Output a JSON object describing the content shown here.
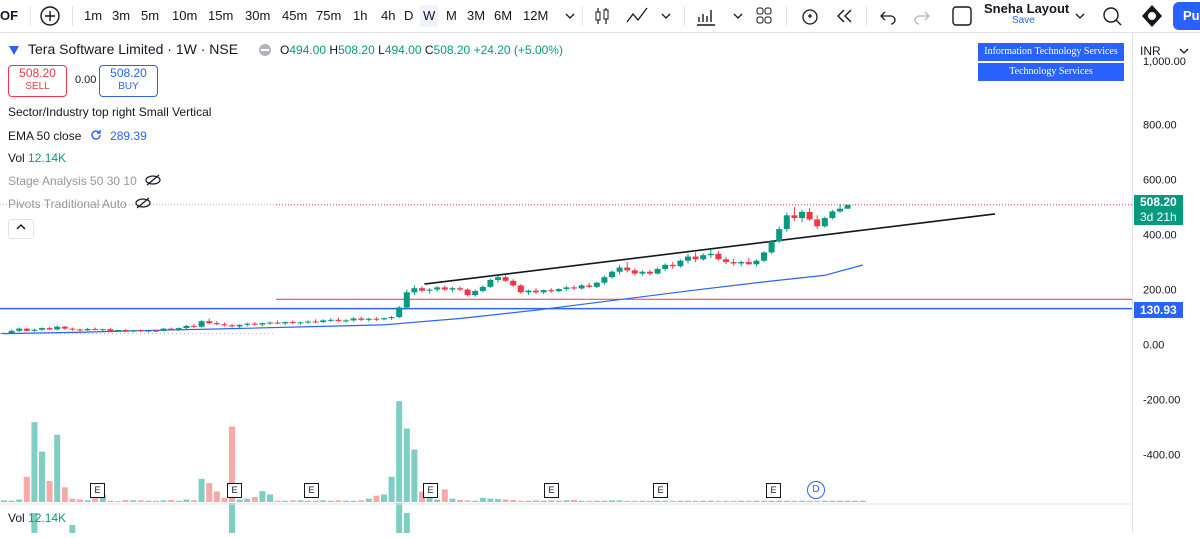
{
  "toolbar": {
    "left_cut": "OF",
    "intervals": [
      "1m",
      "3m",
      "5m",
      "10m",
      "15m",
      "30m",
      "45m",
      "75m",
      "1h",
      "4h",
      "D",
      "W",
      "M",
      "3M",
      "6M",
      "12M"
    ],
    "active_interval": "W",
    "layout_name": "Sneha Layout",
    "layout_save": "Save",
    "publish_cut": "Pu"
  },
  "legend": {
    "title": "Tera Software Limited · 1W · NSE",
    "o_key": "O",
    "o": "494.00",
    "h_key": "H",
    "h": "508.20",
    "l_key": "L",
    "l": "494.00",
    "c_key": "C",
    "c": "508.20",
    "change": "+24.20 (+5.00%)",
    "sell_price": "508.20",
    "sell_label": "SELL",
    "spread": "0.00",
    "buy_price": "508.20",
    "buy_label": "BUY"
  },
  "indicators": {
    "sector": "Sector/Industry top right Small Vertical",
    "ema_label": "EMA 50 close",
    "ema_value": "289.39",
    "vol_label": "Vol",
    "vol_value": "12.14K",
    "stage": "Stage Analysis 50 30 10",
    "pivots": "Pivots Traditional Auto",
    "vol2_label": "Vol",
    "vol2_value": "12.14K"
  },
  "sector_boxes": [
    "Information Technology Services",
    "Technology Services"
  ],
  "currency": "INR",
  "badges": {
    "last_price": "508.20",
    "countdown": "3d 21h",
    "line_price": "130.93",
    "last_color": "#089981",
    "line_color": "#2962ff"
  },
  "earnings_mark": "E",
  "dividend_mark": "D",
  "colors": {
    "up": "#089981",
    "down": "#f23645",
    "ema": "#2962ff",
    "accent": "#2962ff"
  },
  "chart_data": {
    "type": "candlestick",
    "symbol": "Tera Software Limited",
    "interval": "1W",
    "y_ticks": [
      800,
      600,
      400,
      200,
      0,
      -200,
      -400
    ],
    "y_tick_labels": [
      "800.00",
      "600.00",
      "400.00",
      "200.00",
      "0.00",
      "-200.00",
      "-400.00"
    ],
    "ylim": [
      -560,
      1000
    ],
    "horizontal_lines": [
      {
        "price": 508.2,
        "color": "#f23645",
        "style": "dotted"
      },
      {
        "price": 165,
        "color": "#f23645",
        "style": "solid"
      },
      {
        "price": 130.93,
        "color": "#2962ff",
        "style": "solid"
      }
    ],
    "trendline": {
      "from_bar": 54,
      "from_price": 220,
      "to_bar": 125,
      "to_price": 475
    },
    "candles": [
      [
        40,
        44,
        38,
        42
      ],
      [
        42,
        55,
        40,
        50
      ],
      [
        50,
        62,
        46,
        58
      ],
      [
        58,
        60,
        48,
        50
      ],
      [
        50,
        58,
        46,
        54
      ],
      [
        54,
        62,
        50,
        60
      ],
      [
        60,
        64,
        52,
        55
      ],
      [
        55,
        70,
        52,
        65
      ],
      [
        65,
        68,
        54,
        58
      ],
      [
        58,
        62,
        50,
        55
      ],
      [
        55,
        58,
        48,
        52
      ],
      [
        52,
        60,
        50,
        57
      ],
      [
        57,
        62,
        52,
        54
      ],
      [
        54,
        58,
        50,
        56
      ],
      [
        56,
        60,
        48,
        50
      ],
      [
        50,
        55,
        46,
        53
      ],
      [
        53,
        56,
        46,
        48
      ],
      [
        48,
        54,
        44,
        52
      ],
      [
        52,
        56,
        46,
        49
      ],
      [
        49,
        54,
        44,
        51
      ],
      [
        51,
        55,
        46,
        50
      ],
      [
        50,
        60,
        48,
        58
      ],
      [
        58,
        62,
        52,
        55
      ],
      [
        55,
        62,
        50,
        60
      ],
      [
        60,
        72,
        56,
        68
      ],
      [
        68,
        75,
        60,
        65
      ],
      [
        65,
        90,
        62,
        85
      ],
      [
        85,
        95,
        74,
        78
      ],
      [
        78,
        85,
        70,
        74
      ],
      [
        74,
        80,
        66,
        70
      ],
      [
        70,
        76,
        62,
        66
      ],
      [
        66,
        74,
        60,
        72
      ],
      [
        72,
        80,
        66,
        76
      ],
      [
        76,
        82,
        70,
        73
      ],
      [
        73,
        80,
        66,
        78
      ],
      [
        78,
        84,
        72,
        80
      ],
      [
        80,
        88,
        74,
        77
      ],
      [
        77,
        84,
        70,
        82
      ],
      [
        82,
        88,
        74,
        79
      ],
      [
        79,
        84,
        72,
        81
      ],
      [
        81,
        88,
        76,
        84
      ],
      [
        84,
        92,
        78,
        82
      ],
      [
        82,
        92,
        78,
        88
      ],
      [
        88,
        96,
        82,
        90
      ],
      [
        90,
        98,
        82,
        86
      ],
      [
        86,
        92,
        80,
        88
      ],
      [
        88,
        100,
        84,
        95
      ],
      [
        95,
        102,
        86,
        90
      ],
      [
        90,
        98,
        84,
        94
      ],
      [
        94,
        100,
        86,
        92
      ],
      [
        92,
        98,
        88,
        96
      ],
      [
        96,
        104,
        90,
        100
      ],
      [
        100,
        140,
        96,
        135
      ],
      [
        135,
        200,
        130,
        190
      ],
      [
        190,
        215,
        180,
        205
      ],
      [
        205,
        212,
        190,
        196
      ],
      [
        196,
        205,
        185,
        200
      ],
      [
        200,
        212,
        192,
        208
      ],
      [
        208,
        215,
        195,
        200
      ],
      [
        200,
        210,
        190,
        205
      ],
      [
        205,
        212,
        195,
        200
      ],
      [
        200,
        205,
        175,
        180
      ],
      [
        180,
        200,
        175,
        195
      ],
      [
        195,
        215,
        190,
        210
      ],
      [
        210,
        240,
        205,
        235
      ],
      [
        235,
        250,
        225,
        245
      ],
      [
        245,
        255,
        228,
        232
      ],
      [
        232,
        238,
        210,
        215
      ],
      [
        215,
        220,
        185,
        190
      ],
      [
        190,
        200,
        180,
        196
      ],
      [
        196,
        205,
        185,
        190
      ],
      [
        190,
        200,
        184,
        198
      ],
      [
        198,
        205,
        188,
        194
      ],
      [
        194,
        205,
        190,
        202
      ],
      [
        202,
        212,
        195,
        208
      ],
      [
        208,
        215,
        198,
        204
      ],
      [
        204,
        220,
        200,
        215
      ],
      [
        215,
        225,
        205,
        210
      ],
      [
        210,
        228,
        205,
        225
      ],
      [
        225,
        250,
        218,
        245
      ],
      [
        245,
        270,
        240,
        265
      ],
      [
        265,
        290,
        255,
        280
      ],
      [
        280,
        300,
        262,
        270
      ],
      [
        270,
        278,
        252,
        258
      ],
      [
        258,
        270,
        250,
        265
      ],
      [
        265,
        272,
        252,
        258
      ],
      [
        258,
        280,
        255,
        275
      ],
      [
        275,
        295,
        268,
        290
      ],
      [
        290,
        300,
        275,
        285
      ],
      [
        285,
        310,
        280,
        305
      ],
      [
        305,
        330,
        295,
        320
      ],
      [
        320,
        335,
        300,
        310
      ],
      [
        310,
        332,
        305,
        325
      ],
      [
        325,
        345,
        315,
        330
      ],
      [
        330,
        340,
        305,
        310
      ],
      [
        310,
        318,
        292,
        300
      ],
      [
        300,
        312,
        288,
        295
      ],
      [
        295,
        305,
        285,
        300
      ],
      [
        300,
        315,
        290,
        292
      ],
      [
        292,
        310,
        285,
        305
      ],
      [
        305,
        340,
        300,
        335
      ],
      [
        335,
        380,
        330,
        375
      ],
      [
        375,
        430,
        370,
        420
      ],
      [
        420,
        480,
        410,
        470
      ],
      [
        470,
        500,
        450,
        460
      ],
      [
        460,
        490,
        445,
        482
      ],
      [
        482,
        495,
        450,
        455
      ],
      [
        455,
        470,
        420,
        430
      ],
      [
        430,
        465,
        425,
        460
      ],
      [
        460,
        490,
        455,
        484
      ],
      [
        484,
        510,
        478,
        494
      ],
      [
        494,
        508.2,
        494,
        508.2
      ]
    ],
    "ema50": [
      [
        0,
        40
      ],
      [
        10,
        45
      ],
      [
        20,
        52
      ],
      [
        30,
        58
      ],
      [
        40,
        65
      ],
      [
        50,
        72
      ],
      [
        60,
        95
      ],
      [
        70,
        125
      ],
      [
        80,
        160
      ],
      [
        90,
        195
      ],
      [
        100,
        228
      ],
      [
        108,
        252
      ],
      [
        113,
        289.39
      ]
    ],
    "volume_heights": [
      4,
      3,
      6,
      60,
      190,
      120,
      50,
      160,
      35,
      8,
      6,
      4,
      9,
      18,
      3,
      2,
      5,
      4,
      4,
      3,
      3,
      4,
      5,
      3,
      6,
      4,
      55,
      45,
      25,
      10,
      180,
      6,
      8,
      12,
      26,
      18,
      3,
      3,
      4,
      4,
      3,
      3,
      4,
      3,
      4,
      3,
      3,
      4,
      8,
      15,
      18,
      60,
      240,
      175,
      125,
      25,
      10,
      6,
      30,
      8,
      5,
      4,
      3,
      10,
      8,
      7,
      6,
      5,
      3,
      3,
      4,
      3,
      4,
      3,
      4,
      5,
      3,
      3,
      3,
      3,
      4,
      4,
      3,
      3,
      3,
      3,
      3,
      3,
      3,
      3,
      3,
      3,
      3,
      3,
      3,
      3,
      3,
      3,
      3,
      3,
      3,
      3,
      3,
      3,
      3,
      3,
      3,
      3,
      3,
      3,
      3,
      3,
      3,
      3
    ],
    "volume_colors": "mixed up/down"
  }
}
